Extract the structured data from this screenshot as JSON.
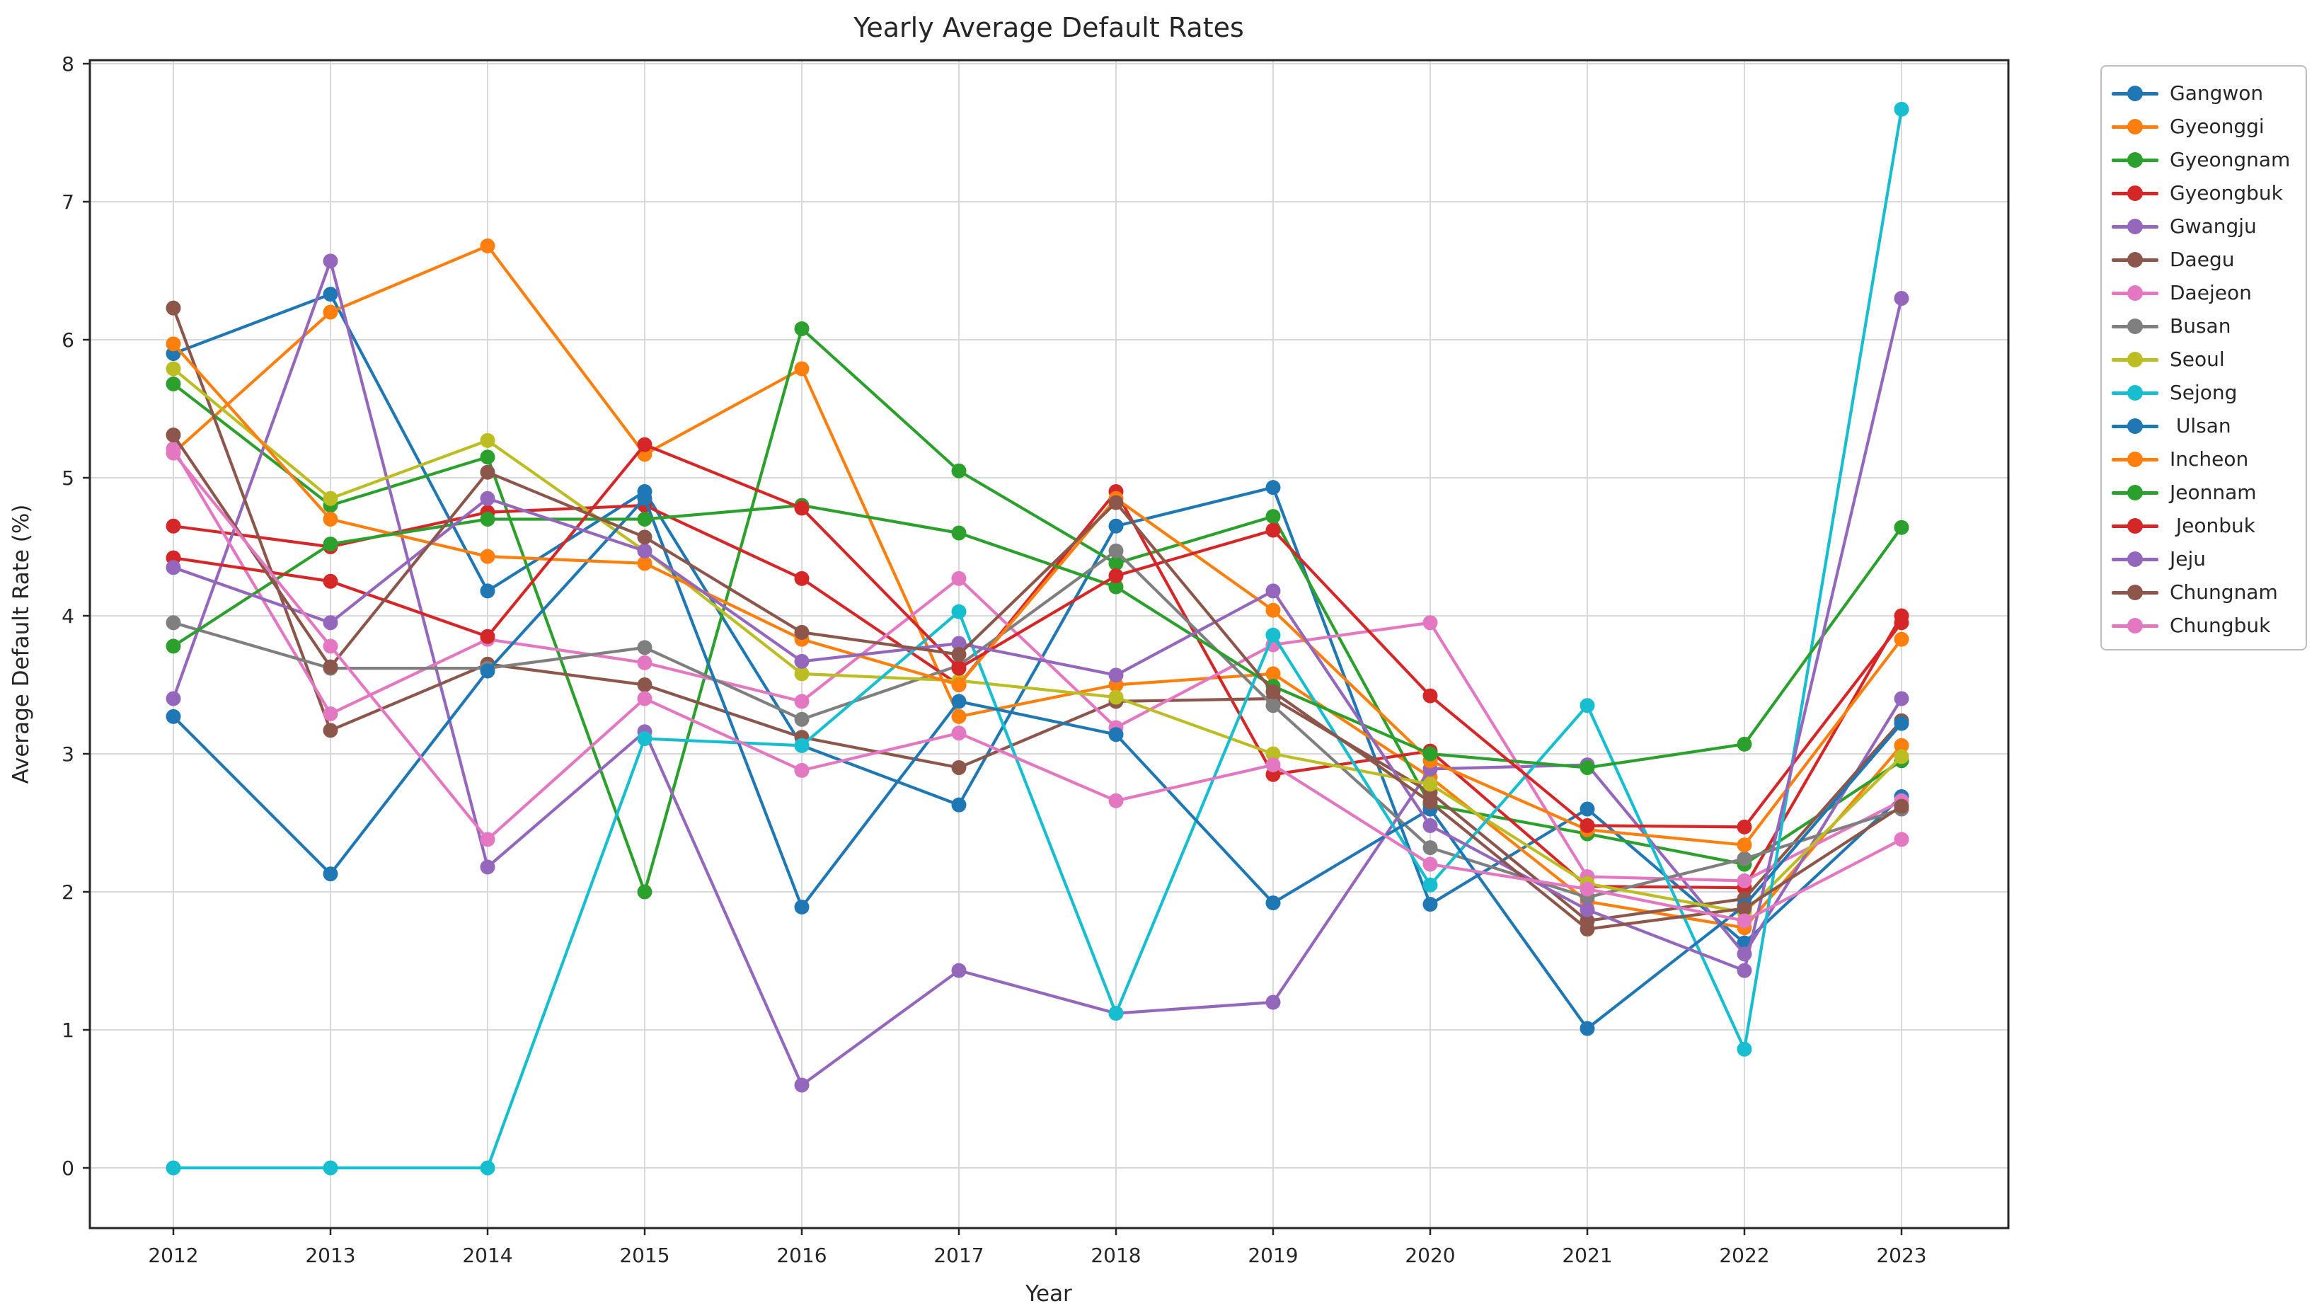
{
  "title": "Yearly Average Default Rates",
  "chart_data": {
    "type": "line",
    "title": "Yearly Average Default Rates",
    "xlabel": "Year",
    "ylabel": "Average Default Rate (%)",
    "x": [
      2012,
      2013,
      2014,
      2015,
      2016,
      2017,
      2018,
      2019,
      2020,
      2021,
      2022,
      2023
    ],
    "yticks": [
      0,
      1,
      2,
      3,
      4,
      5,
      6,
      7,
      8
    ],
    "ylim": [
      -0.44,
      8.03
    ],
    "grid": true,
    "legend_position": "outside-right",
    "marker": "circle",
    "series": [
      {
        "name": "Gangwon",
        "color": "#1f77b4",
        "values": [
          5.9,
          6.33,
          4.18,
          4.9,
          3.06,
          2.63,
          4.65,
          4.93,
          1.91,
          2.6,
          1.63,
          2.69
        ]
      },
      {
        "name": "Gyeonggi",
        "color": "#ff7f0e",
        "values": [
          5.18,
          6.2,
          6.68,
          5.17,
          5.79,
          3.27,
          3.5,
          3.58,
          2.83,
          1.93,
          1.74,
          3.06
        ]
      },
      {
        "name": "Gyeongnam",
        "color": "#2ca02c",
        "values": [
          5.68,
          4.8,
          5.15,
          2.0,
          6.08,
          5.05,
          4.38,
          4.72,
          2.63,
          2.42,
          2.2,
          2.95
        ]
      },
      {
        "name": "Gyeongbuk",
        "color": "#d62728",
        "values": [
          4.65,
          4.5,
          4.75,
          4.8,
          4.27,
          3.5,
          4.9,
          2.85,
          3.02,
          2.04,
          2.03,
          4.0
        ]
      },
      {
        "name": "Gwangju",
        "color": "#9467bd",
        "values": [
          3.4,
          6.57,
          2.18,
          3.16,
          0.6,
          1.43,
          1.12,
          1.2,
          2.89,
          2.92,
          1.55,
          3.4
        ]
      },
      {
        "name": "Daegu",
        "color": "#8c564b",
        "values": [
          6.23,
          3.17,
          3.65,
          3.5,
          3.12,
          2.9,
          3.38,
          3.4,
          2.72,
          1.79,
          1.95,
          3.24
        ]
      },
      {
        "name": "Daejeon",
        "color": "#e377c2",
        "values": [
          5.21,
          3.29,
          3.83,
          3.66,
          3.38,
          4.27,
          3.19,
          3.79,
          3.95,
          2.11,
          2.08,
          2.66
        ]
      },
      {
        "name": "Busan",
        "color": "#7f7f7f",
        "values": [
          3.95,
          3.62,
          3.62,
          3.77,
          3.25,
          3.64,
          4.47,
          3.35,
          2.32,
          1.96,
          2.24,
          2.6
        ]
      },
      {
        "name": "Seoul",
        "color": "#bcbd22",
        "values": [
          5.79,
          4.85,
          5.27,
          4.47,
          3.58,
          3.53,
          3.41,
          3.0,
          2.78,
          2.06,
          1.85,
          2.98
        ]
      },
      {
        "name": "Sejong",
        "color": "#17becf",
        "values": [
          0.0,
          0.0,
          0.0,
          3.11,
          3.06,
          4.03,
          1.12,
          3.86,
          2.05,
          3.35,
          0.86,
          7.67
        ]
      },
      {
        "name": " Ulsan",
        "color": "#1f77b4",
        "values": [
          3.27,
          2.13,
          3.6,
          4.85,
          1.89,
          3.38,
          3.14,
          1.92,
          2.6,
          1.01,
          1.9,
          3.22
        ]
      },
      {
        "name": "Incheon",
        "color": "#ff7f0e",
        "values": [
          5.97,
          4.7,
          4.43,
          4.38,
          3.83,
          3.5,
          4.85,
          4.04,
          2.95,
          2.45,
          2.34,
          3.83
        ]
      },
      {
        "name": "Jeonnam",
        "color": "#2ca02c",
        "values": [
          3.78,
          4.52,
          4.7,
          4.7,
          4.8,
          4.6,
          4.21,
          3.49,
          3.0,
          2.9,
          3.07,
          4.64
        ]
      },
      {
        "name": " Jeonbuk",
        "color": "#d62728",
        "values": [
          4.42,
          4.25,
          3.85,
          5.24,
          4.78,
          3.62,
          4.29,
          4.62,
          3.42,
          2.48,
          2.47,
          3.95
        ]
      },
      {
        "name": "Jeju",
        "color": "#9467bd",
        "values": [
          4.35,
          3.95,
          4.85,
          4.47,
          3.67,
          3.8,
          3.57,
          4.18,
          2.48,
          1.87,
          1.43,
          6.3
        ]
      },
      {
        "name": "Chungnam",
        "color": "#8c564b",
        "values": [
          5.31,
          3.63,
          5.04,
          4.57,
          3.88,
          3.72,
          4.82,
          3.45,
          2.65,
          1.73,
          1.88,
          2.62
        ]
      },
      {
        "name": "Chungbuk",
        "color": "#e377c2",
        "values": [
          5.18,
          3.78,
          2.38,
          3.4,
          2.88,
          3.15,
          2.66,
          2.92,
          2.2,
          2.02,
          1.79,
          2.38
        ]
      }
    ]
  }
}
